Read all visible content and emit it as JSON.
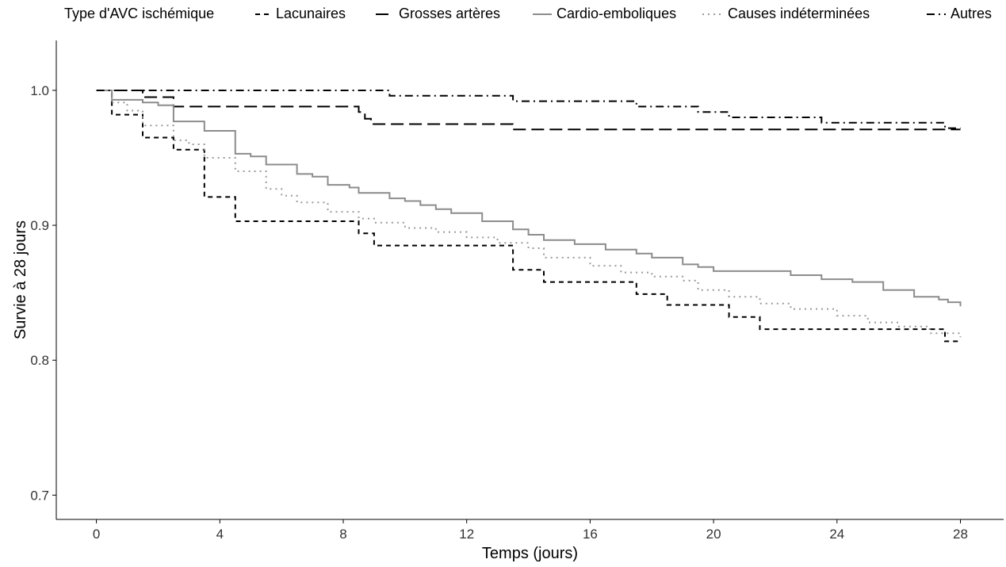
{
  "chart_data": {
    "type": "line",
    "step": true,
    "xlabel": "Temps (jours)",
    "ylabel": "Survie à 28 jours",
    "xlim": [
      -1.3,
      29.4
    ],
    "ylim": [
      0.682,
      1.037
    ],
    "xticks": [
      0,
      4,
      8,
      12,
      16,
      20,
      24,
      28
    ],
    "yticks": [
      0.7,
      0.8,
      0.9,
      1.0
    ],
    "ytick_labels": [
      "0.7",
      "0.8",
      "0.9",
      "1.0"
    ],
    "grid": false,
    "legend": {
      "title": "Type d'AVC ischémique",
      "position": "top"
    },
    "series": [
      {
        "name": "Lacunaires",
        "color": "#000000",
        "dash": "6,5",
        "points": [
          [
            0,
            1.0
          ],
          [
            0.5,
            1.0
          ],
          [
            0.5,
            0.982
          ],
          [
            1.5,
            0.982
          ],
          [
            1.5,
            0.965
          ],
          [
            2.5,
            0.965
          ],
          [
            2.5,
            0.956
          ],
          [
            3.5,
            0.956
          ],
          [
            3.5,
            0.921
          ],
          [
            4.5,
            0.921
          ],
          [
            4.5,
            0.903
          ],
          [
            8.5,
            0.903
          ],
          [
            8.5,
            0.894
          ],
          [
            9,
            0.894
          ],
          [
            9,
            0.885
          ],
          [
            13.5,
            0.885
          ],
          [
            13.5,
            0.867
          ],
          [
            14.5,
            0.867
          ],
          [
            14.5,
            0.858
          ],
          [
            17.5,
            0.858
          ],
          [
            17.5,
            0.849
          ],
          [
            18.5,
            0.849
          ],
          [
            18.5,
            0.841
          ],
          [
            20.5,
            0.841
          ],
          [
            20.5,
            0.832
          ],
          [
            21.5,
            0.832
          ],
          [
            21.5,
            0.823
          ],
          [
            27.5,
            0.823
          ],
          [
            27.5,
            0.814
          ],
          [
            28,
            0.814
          ]
        ]
      },
      {
        "name": "Grosses artères",
        "color": "#000000",
        "dash": "16,7",
        "points": [
          [
            0,
            1.0
          ],
          [
            1.5,
            1.0
          ],
          [
            1.5,
            0.995
          ],
          [
            2.5,
            0.995
          ],
          [
            2.5,
            0.988
          ],
          [
            8.5,
            0.988
          ],
          [
            8.5,
            0.984
          ],
          [
            8.7,
            0.984
          ],
          [
            8.7,
            0.979
          ],
          [
            8.9,
            0.979
          ],
          [
            8.9,
            0.975
          ],
          [
            13.5,
            0.975
          ],
          [
            13.5,
            0.971
          ],
          [
            28,
            0.971
          ]
        ]
      },
      {
        "name": "Cardio-emboliques",
        "color": "#8c8c8c",
        "dash": "",
        "points": [
          [
            0,
            1.0
          ],
          [
            0.5,
            1.0
          ],
          [
            0.5,
            0.993
          ],
          [
            1.5,
            0.993
          ],
          [
            1.5,
            0.991
          ],
          [
            2,
            0.991
          ],
          [
            2,
            0.989
          ],
          [
            2.5,
            0.989
          ],
          [
            2.5,
            0.977
          ],
          [
            3.5,
            0.977
          ],
          [
            3.5,
            0.97
          ],
          [
            4.5,
            0.97
          ],
          [
            4.5,
            0.953
          ],
          [
            5,
            0.953
          ],
          [
            5,
            0.951
          ],
          [
            5.5,
            0.951
          ],
          [
            5.5,
            0.945
          ],
          [
            6.5,
            0.945
          ],
          [
            6.5,
            0.938
          ],
          [
            7,
            0.938
          ],
          [
            7,
            0.936
          ],
          [
            7.5,
            0.936
          ],
          [
            7.5,
            0.93
          ],
          [
            8.2,
            0.93
          ],
          [
            8.2,
            0.928
          ],
          [
            8.5,
            0.928
          ],
          [
            8.5,
            0.924
          ],
          [
            9.5,
            0.924
          ],
          [
            9.5,
            0.92
          ],
          [
            10,
            0.92
          ],
          [
            10,
            0.918
          ],
          [
            10.5,
            0.918
          ],
          [
            10.5,
            0.915
          ],
          [
            11,
            0.915
          ],
          [
            11,
            0.912
          ],
          [
            11.5,
            0.912
          ],
          [
            11.5,
            0.909
          ],
          [
            12.5,
            0.909
          ],
          [
            12.5,
            0.903
          ],
          [
            13.5,
            0.903
          ],
          [
            13.5,
            0.897
          ],
          [
            14,
            0.897
          ],
          [
            14,
            0.893
          ],
          [
            14.5,
            0.893
          ],
          [
            14.5,
            0.889
          ],
          [
            15.5,
            0.889
          ],
          [
            15.5,
            0.886
          ],
          [
            16.5,
            0.886
          ],
          [
            16.5,
            0.882
          ],
          [
            17.5,
            0.882
          ],
          [
            17.5,
            0.879
          ],
          [
            18,
            0.879
          ],
          [
            18,
            0.876
          ],
          [
            19,
            0.876
          ],
          [
            19,
            0.871
          ],
          [
            19.5,
            0.871
          ],
          [
            19.5,
            0.869
          ],
          [
            20,
            0.869
          ],
          [
            20,
            0.866
          ],
          [
            22.5,
            0.866
          ],
          [
            22.5,
            0.863
          ],
          [
            23.5,
            0.863
          ],
          [
            23.5,
            0.86
          ],
          [
            24.5,
            0.86
          ],
          [
            24.5,
            0.858
          ],
          [
            25.5,
            0.858
          ],
          [
            25.5,
            0.852
          ],
          [
            26.5,
            0.852
          ],
          [
            26.5,
            0.847
          ],
          [
            27.3,
            0.847
          ],
          [
            27.3,
            0.845
          ],
          [
            27.6,
            0.845
          ],
          [
            27.6,
            0.843
          ],
          [
            28,
            0.843
          ],
          [
            28,
            0.84
          ]
        ]
      },
      {
        "name": "Causes indéterminées",
        "color": "#9a9a9a",
        "dash": "2,5",
        "points": [
          [
            0,
            1.0
          ],
          [
            0.5,
            1.0
          ],
          [
            0.5,
            0.991
          ],
          [
            1,
            0.991
          ],
          [
            1,
            0.985
          ],
          [
            1.5,
            0.985
          ],
          [
            1.5,
            0.974
          ],
          [
            2.5,
            0.974
          ],
          [
            2.5,
            0.963
          ],
          [
            3,
            0.963
          ],
          [
            3,
            0.96
          ],
          [
            3.5,
            0.96
          ],
          [
            3.5,
            0.95
          ],
          [
            4.5,
            0.95
          ],
          [
            4.5,
            0.94
          ],
          [
            5.5,
            0.94
          ],
          [
            5.5,
            0.927
          ],
          [
            6,
            0.927
          ],
          [
            6,
            0.922
          ],
          [
            6.5,
            0.922
          ],
          [
            6.5,
            0.917
          ],
          [
            7.5,
            0.917
          ],
          [
            7.5,
            0.91
          ],
          [
            8.5,
            0.91
          ],
          [
            8.5,
            0.905
          ],
          [
            9,
            0.905
          ],
          [
            9,
            0.902
          ],
          [
            10,
            0.902
          ],
          [
            10,
            0.898
          ],
          [
            11,
            0.898
          ],
          [
            11,
            0.895
          ],
          [
            12,
            0.895
          ],
          [
            12,
            0.891
          ],
          [
            13,
            0.891
          ],
          [
            13,
            0.887
          ],
          [
            14,
            0.887
          ],
          [
            14,
            0.883
          ],
          [
            14.5,
            0.883
          ],
          [
            14.5,
            0.876
          ],
          [
            16,
            0.876
          ],
          [
            16,
            0.87
          ],
          [
            17,
            0.87
          ],
          [
            17,
            0.865
          ],
          [
            18,
            0.865
          ],
          [
            18,
            0.862
          ],
          [
            19,
            0.862
          ],
          [
            19,
            0.859
          ],
          [
            19.5,
            0.859
          ],
          [
            19.5,
            0.852
          ],
          [
            20.5,
            0.852
          ],
          [
            20.5,
            0.847
          ],
          [
            21.5,
            0.847
          ],
          [
            21.5,
            0.842
          ],
          [
            22.5,
            0.842
          ],
          [
            22.5,
            0.838
          ],
          [
            24,
            0.838
          ],
          [
            24,
            0.833
          ],
          [
            25,
            0.833
          ],
          [
            25,
            0.828
          ],
          [
            26,
            0.828
          ],
          [
            26,
            0.825
          ],
          [
            27,
            0.825
          ],
          [
            27,
            0.82
          ],
          [
            28,
            0.82
          ],
          [
            28,
            0.817
          ]
        ]
      },
      {
        "name": "Autres",
        "color": "#000000",
        "dash": "10,5,2,5",
        "points": [
          [
            0,
            1.0
          ],
          [
            9.5,
            1.0
          ],
          [
            9.5,
            0.996
          ],
          [
            13.5,
            0.996
          ],
          [
            13.5,
            0.992
          ],
          [
            17.5,
            0.992
          ],
          [
            17.5,
            0.988
          ],
          [
            19.5,
            0.988
          ],
          [
            19.5,
            0.984
          ],
          [
            20.5,
            0.984
          ],
          [
            20.5,
            0.98
          ],
          [
            23.5,
            0.98
          ],
          [
            23.5,
            0.976
          ],
          [
            27.5,
            0.976
          ],
          [
            27.5,
            0.972
          ],
          [
            28,
            0.972
          ]
        ]
      }
    ]
  }
}
